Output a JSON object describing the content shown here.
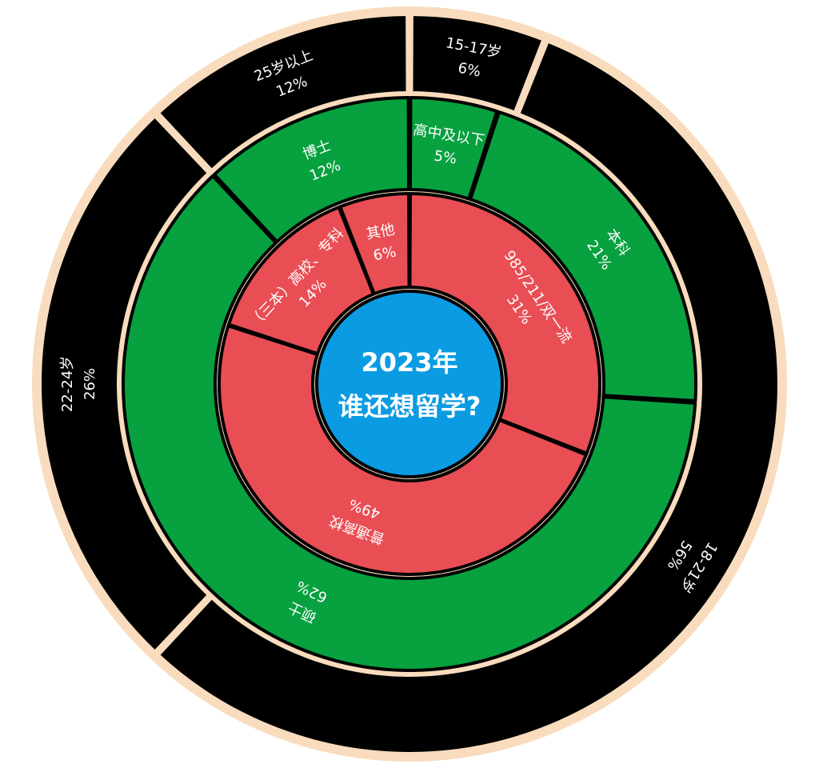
{
  "chart_data": {
    "type": "sunburst",
    "title": "2023年",
    "subtitle": "谁还想留学?",
    "center_color": "#0b9be2",
    "rings": [
      {
        "categories": [
          "985/211/双一流",
          "普通高校",
          "（三本）高校、专科",
          "其他"
        ],
        "values": [
          31,
          49,
          14,
          6
        ],
        "value_labels": [
          "31%",
          "49%",
          "14%",
          "6%"
        ],
        "color": "#e94e55"
      },
      {
        "categories": [
          "高中及以下",
          "本科",
          "硕士",
          "博士"
        ],
        "values": [
          5,
          21,
          62,
          12
        ],
        "value_labels": [
          "5%",
          "21%",
          "62%",
          "12%"
        ],
        "color": "#07a13f"
      },
      {
        "categories": [
          "15-17岁",
          "18-21岁",
          "22-24岁",
          "25岁以上"
        ],
        "values": [
          6,
          56,
          26,
          12
        ],
        "value_labels": [
          "6%",
          "56%",
          "26%",
          "12%"
        ],
        "color": "#000000"
      }
    ]
  }
}
